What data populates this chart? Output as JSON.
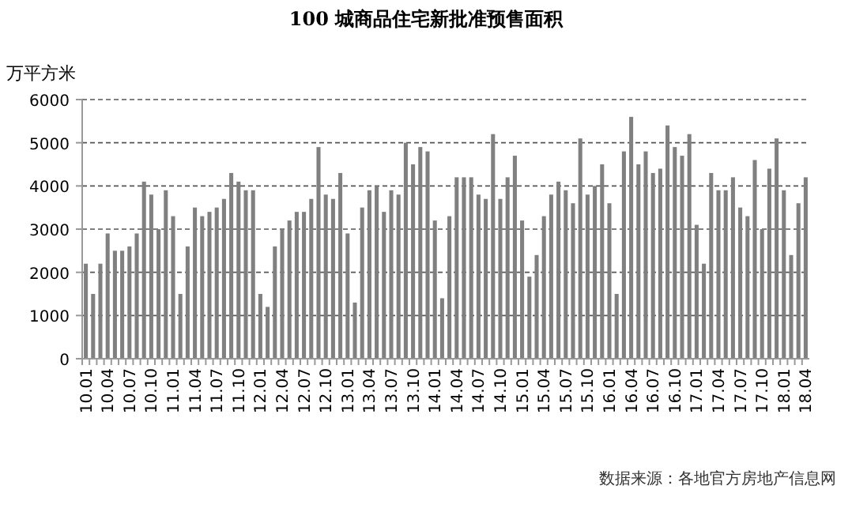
{
  "chart_data": {
    "type": "bar",
    "title": "100 城商品住宅新批准预售面积",
    "ylabel": "万平方米",
    "categories": [
      "10.01",
      null,
      null,
      "10.04",
      null,
      null,
      "10.07",
      null,
      null,
      "10.10",
      null,
      null,
      "11.01",
      null,
      null,
      "11.04",
      null,
      null,
      "11.07",
      null,
      null,
      "11.10",
      null,
      null,
      "12.01",
      null,
      null,
      "12.04",
      null,
      null,
      "12.07",
      null,
      null,
      "12.10",
      null,
      null,
      "13.01",
      null,
      null,
      "13.04",
      null,
      null,
      "13.07",
      null,
      null,
      "13.10",
      null,
      null,
      "14.01",
      null,
      null,
      "14.04",
      null,
      null,
      "14.07",
      null,
      null,
      "14.10",
      null,
      null,
      "15.01",
      null,
      null,
      "15.04",
      null,
      null,
      "15.07",
      null,
      null,
      "15.10",
      null,
      null,
      "16.01",
      null,
      null,
      "16.04",
      null,
      null,
      "16.07",
      null,
      null,
      "16.10",
      null,
      null,
      "17.01",
      null,
      null,
      "17.04",
      null,
      null,
      "17.07",
      null,
      null,
      "17.10",
      null,
      null,
      "18.01",
      null,
      null,
      "18.04"
    ],
    "values": [
      2200,
      1500,
      2200,
      2900,
      2500,
      2500,
      2600,
      2900,
      4100,
      3800,
      3000,
      3900,
      3300,
      1500,
      2600,
      3500,
      3300,
      3400,
      3500,
      3700,
      4300,
      4100,
      3900,
      3900,
      1500,
      1200,
      2600,
      3000,
      3200,
      3400,
      3400,
      3700,
      4900,
      3800,
      3700,
      4300,
      2900,
      1300,
      3500,
      3900,
      4000,
      3400,
      3900,
      3800,
      5000,
      4500,
      4900,
      4800,
      3200,
      1400,
      3300,
      4200,
      4200,
      4200,
      3800,
      3700,
      5200,
      3700,
      4200,
      4700,
      3200,
      1900,
      2400,
      3300,
      3800,
      4100,
      3900,
      3600,
      5100,
      3800,
      4000,
      4500,
      3600,
      1500,
      4800,
      5600,
      4500,
      4800,
      4300,
      4400,
      5400,
      4900,
      4700,
      5200,
      3100,
      2200,
      4300,
      3900,
      3900,
      4200,
      3500,
      3300,
      4600,
      3000,
      4400,
      5100,
      3900,
      2400,
      3600,
      4200
    ],
    "color": "#808080",
    "ylim": [
      0,
      6000
    ],
    "yticks": [
      0,
      1000,
      2000,
      3000,
      4000,
      5000,
      6000
    ],
    "grid": "y",
    "annotations": [
      "数据来源：各地官方房地产信息网"
    ]
  }
}
